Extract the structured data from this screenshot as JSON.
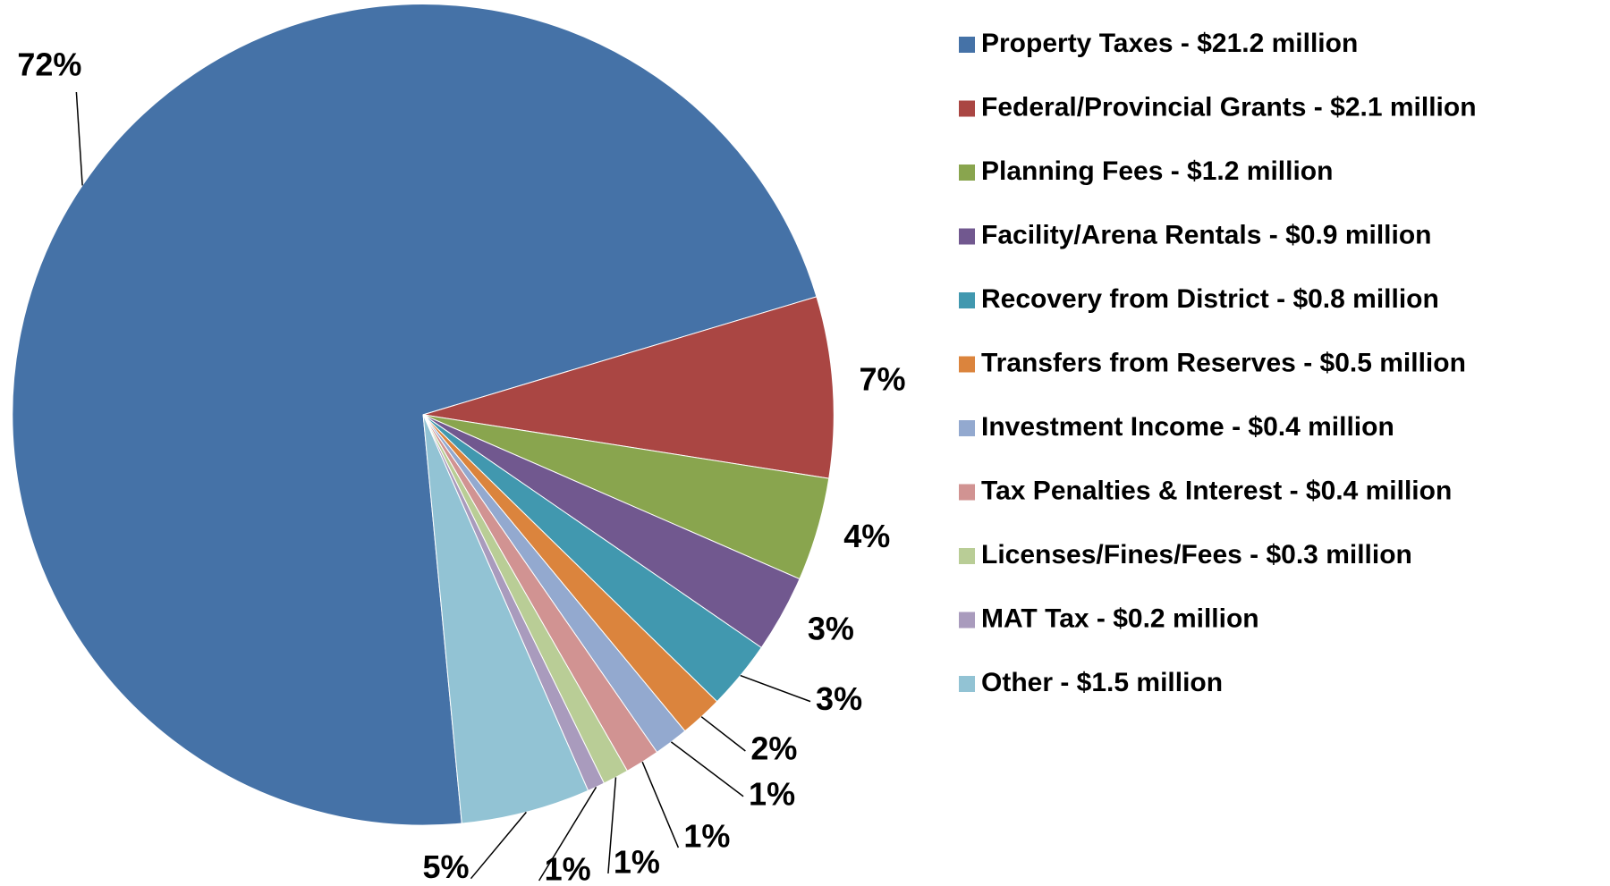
{
  "chart_data": {
    "type": "pie",
    "categories": [
      "Property Taxes - $21.2 million",
      "Federal/Provincial Grants - $2.1 million",
      "Planning Fees - $1.2 million",
      "Facility/Arena Rentals - $0.9 million",
      "Recovery from District - $0.8 million",
      "Transfers from Reserves - $0.5 million",
      "Investment Income - $0.4 million",
      "Tax Penalties & Interest - $0.4 million",
      "Licenses/Fines/Fees - $0.3 million",
      "MAT Tax - $0.2 million",
      "Other - $1.5 million"
    ],
    "values": [
      71.86,
      7.12,
      4.07,
      3.05,
      2.71,
      1.69,
      1.36,
      1.36,
      1.02,
      0.68,
      5.08
    ],
    "value_labels": [
      "72%",
      "7%",
      "4%",
      "3%",
      "3%",
      "2%",
      "1%",
      "1%",
      "1%",
      "1%",
      "5%"
    ],
    "colors": [
      "#4572a7",
      "#aa4643",
      "#89a54e",
      "#71588f",
      "#4198af",
      "#db843d",
      "#93a9cf",
      "#d19392",
      "#b9cd96",
      "#a99bbd",
      "#92c3d4"
    ],
    "legend": "right"
  }
}
